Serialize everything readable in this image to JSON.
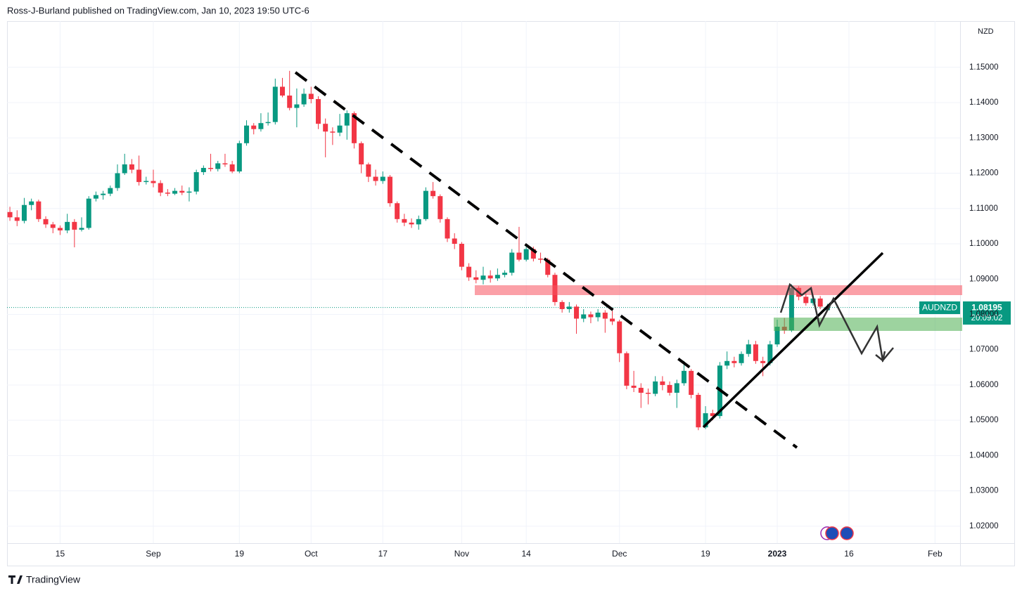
{
  "chart_data": {
    "type": "candlestick",
    "title": "Ross-J-Burland published on TradingView.com, Jan 10, 2023 19:50 UTC-6",
    "currency": "NZD",
    "countdown": "20:09:02",
    "brand": "TradingView",
    "xlim": [
      -0.4,
      132.5
    ],
    "xticks": [
      {
        "value": 7,
        "label": "15"
      },
      {
        "value": 20,
        "label": "Sep"
      },
      {
        "value": 32,
        "label": "19"
      },
      {
        "value": 42,
        "label": "Oct"
      },
      {
        "value": 52,
        "label": "17"
      },
      {
        "value": 63,
        "label": "Nov"
      },
      {
        "value": 72,
        "label": "14"
      },
      {
        "value": 85,
        "label": "Dec"
      },
      {
        "value": 97,
        "label": "19"
      },
      {
        "value": 107,
        "label": "2023"
      },
      {
        "value": 117,
        "label": "16"
      },
      {
        "value": 129,
        "label": "Feb"
      }
    ],
    "ylim": [
      1.0152,
      1.1631
    ],
    "yticks": [
      {
        "value": 1.02,
        "label": "1.02000"
      },
      {
        "value": 1.03,
        "label": "1.03000"
      },
      {
        "value": 1.04,
        "label": "1.04000"
      },
      {
        "value": 1.05,
        "label": "1.05000"
      },
      {
        "value": 1.06,
        "label": "1.06000"
      },
      {
        "value": 1.07,
        "label": "1.07000"
      },
      {
        "value": 1.08,
        "label": "1.08000"
      },
      {
        "value": 1.09,
        "label": "1.09000"
      },
      {
        "value": 1.1,
        "label": "1.10000"
      },
      {
        "value": 1.11,
        "label": "1.11000"
      },
      {
        "value": 1.12,
        "label": "1.12000"
      },
      {
        "value": 1.13,
        "label": "1.13000"
      },
      {
        "value": 1.14,
        "label": "1.14000"
      },
      {
        "value": 1.15,
        "label": "1.15000"
      }
    ],
    "grid": true,
    "series": [
      {
        "name": "AUDNZD",
        "up_color": "#089981",
        "down_color": "#f23645",
        "open": [
          1.109,
          1.1075,
          1.1065,
          1.111,
          1.112,
          1.107,
          1.1055,
          1.1045,
          1.1038,
          1.1062,
          1.104,
          1.1045,
          1.1128,
          1.1138,
          1.1142,
          1.1158,
          1.12,
          1.1225,
          1.121,
          1.1175,
          1.1178,
          1.1172,
          1.1145,
          1.1142,
          1.115,
          1.1145,
          1.1148,
          1.1203,
          1.1215,
          1.1212,
          1.1228,
          1.1225,
          1.1205,
          1.1285,
          1.1335,
          1.1325,
          1.1342,
          1.1345,
          1.1445,
          1.142,
          1.1385,
          1.1395,
          1.1425,
          1.141,
          1.134,
          1.1318,
          1.1315,
          1.1335,
          1.137,
          1.1285,
          1.1225,
          1.119,
          1.1178,
          1.119,
          1.1115,
          1.107,
          1.106,
          1.1055,
          1.107,
          1.115,
          1.1135,
          1.107,
          1.1015,
          1.1,
          1.0935,
          1.0905,
          1.0898,
          1.091,
          1.0902,
          1.0912,
          1.0918,
          1.0975,
          1.0955,
          1.0985,
          1.0958,
          1.0955,
          1.0912,
          1.0835,
          1.0815,
          1.0822,
          1.0788,
          1.08,
          1.0792,
          1.0805,
          1.0788,
          1.078,
          1.069,
          1.0598,
          1.0592,
          1.0578,
          1.0575,
          1.061,
          1.06,
          1.0578,
          1.0605,
          1.064,
          1.0572,
          1.048,
          1.052,
          1.0512,
          1.0655,
          1.0668,
          1.0662,
          1.0688,
          1.0715,
          1.0668,
          1.0662,
          1.0715,
          1.0765,
          1.0755,
          1.0875,
          1.085,
          1.0832,
          1.0845,
          1.0812
        ],
        "high": [
          1.1105,
          1.1095,
          1.113,
          1.1128,
          1.1125,
          1.1078,
          1.1062,
          1.1052,
          1.1085,
          1.107,
          1.1075,
          1.1135,
          1.1148,
          1.115,
          1.1165,
          1.1225,
          1.1255,
          1.124,
          1.125,
          1.119,
          1.121,
          1.118,
          1.1155,
          1.1158,
          1.1165,
          1.116,
          1.121,
          1.1222,
          1.1255,
          1.1235,
          1.1255,
          1.1235,
          1.1292,
          1.135,
          1.1342,
          1.137,
          1.1372,
          1.1468,
          1.147,
          1.149,
          1.144,
          1.144,
          1.1445,
          1.1418,
          1.1355,
          1.133,
          1.1368,
          1.1378,
          1.1375,
          1.129,
          1.123,
          1.121,
          1.1205,
          1.1195,
          1.112,
          1.1085,
          1.1072,
          1.108,
          1.116,
          1.1175,
          1.114,
          1.1075,
          1.103,
          1.1005,
          1.0945,
          1.0925,
          1.0935,
          1.0925,
          1.093,
          1.0925,
          1.0985,
          1.1048,
          1.0995,
          1.0992,
          1.0975,
          1.096,
          1.0918,
          1.084,
          1.0835,
          1.0828,
          1.0815,
          1.0808,
          1.0815,
          1.0812,
          1.081,
          1.0785,
          1.0695,
          1.064,
          1.0605,
          1.059,
          1.0625,
          1.0625,
          1.061,
          1.0615,
          1.0668,
          1.0645,
          1.0578,
          1.054,
          1.053,
          1.0665,
          1.0695,
          1.068,
          1.0695,
          1.0728,
          1.0725,
          1.068,
          1.0725,
          1.0785,
          1.079,
          1.0885,
          1.088,
          1.086,
          1.0855,
          1.0852,
          1.083
        ],
        "low": [
          1.1065,
          1.105,
          1.1058,
          1.1095,
          1.1062,
          1.1045,
          1.103,
          1.1025,
          1.103,
          1.099,
          1.1035,
          1.104,
          1.112,
          1.1125,
          1.1135,
          1.115,
          1.1195,
          1.12,
          1.1165,
          1.1168,
          1.116,
          1.1135,
          1.1135,
          1.1138,
          1.1138,
          1.112,
          1.114,
          1.1195,
          1.1205,
          1.1205,
          1.1218,
          1.12,
          1.12,
          1.1278,
          1.131,
          1.1318,
          1.1335,
          1.1338,
          1.1415,
          1.1378,
          1.133,
          1.1388,
          1.1398,
          1.1325,
          1.1245,
          1.128,
          1.1305,
          1.1295,
          1.127,
          1.12,
          1.1175,
          1.1165,
          1.117,
          1.1105,
          1.106,
          1.105,
          1.1045,
          1.104,
          1.1065,
          1.1128,
          1.106,
          1.1005,
          1.0985,
          1.0925,
          1.0895,
          1.0888,
          1.0885,
          1.089,
          1.0895,
          1.0905,
          1.091,
          1.095,
          1.095,
          1.095,
          1.0945,
          1.0905,
          1.0825,
          1.0805,
          1.0805,
          1.0745,
          1.0778,
          1.0775,
          1.078,
          1.0748,
          1.077,
          1.0665,
          1.0588,
          1.058,
          1.0535,
          1.0545,
          1.0568,
          1.0585,
          1.057,
          1.0535,
          1.0598,
          1.0562,
          1.0472,
          1.0475,
          1.05,
          1.0505,
          1.0645,
          1.065,
          1.0655,
          1.068,
          1.066,
          1.0625,
          1.0655,
          1.0708,
          1.0745,
          1.075,
          1.084,
          1.0825,
          1.0825,
          1.0815,
          1.081
        ],
        "close": [
          1.1075,
          1.1065,
          1.111,
          1.112,
          1.107,
          1.1055,
          1.1045,
          1.1038,
          1.1062,
          1.104,
          1.1045,
          1.1128,
          1.1138,
          1.1142,
          1.1158,
          1.12,
          1.1225,
          1.121,
          1.1175,
          1.1178,
          1.1172,
          1.1145,
          1.1142,
          1.115,
          1.1145,
          1.1148,
          1.1203,
          1.1215,
          1.1212,
          1.1228,
          1.1225,
          1.1205,
          1.1285,
          1.1335,
          1.1325,
          1.1342,
          1.1345,
          1.1445,
          1.142,
          1.1385,
          1.1395,
          1.1425,
          1.141,
          1.134,
          1.1318,
          1.1315,
          1.1335,
          1.137,
          1.1285,
          1.1225,
          1.119,
          1.1178,
          1.119,
          1.1115,
          1.107,
          1.106,
          1.1055,
          1.107,
          1.115,
          1.1135,
          1.107,
          1.1015,
          1.1,
          1.0935,
          1.0905,
          1.0898,
          1.091,
          1.0902,
          1.0912,
          1.0918,
          1.0975,
          1.0955,
          1.0985,
          1.0958,
          1.0955,
          1.0912,
          1.0835,
          1.0815,
          1.0822,
          1.0788,
          1.08,
          1.0792,
          1.0805,
          1.0788,
          1.078,
          1.069,
          1.0598,
          1.0592,
          1.0578,
          1.0575,
          1.061,
          1.06,
          1.0578,
          1.0605,
          1.064,
          1.0572,
          1.048,
          1.052,
          1.0512,
          1.0655,
          1.0668,
          1.0662,
          1.0688,
          1.0715,
          1.0668,
          1.0662,
          1.0715,
          1.0765,
          1.0755,
          1.0875,
          1.085,
          1.0832,
          1.0845,
          1.0822,
          1.08195
        ]
      }
    ]
  }
}
